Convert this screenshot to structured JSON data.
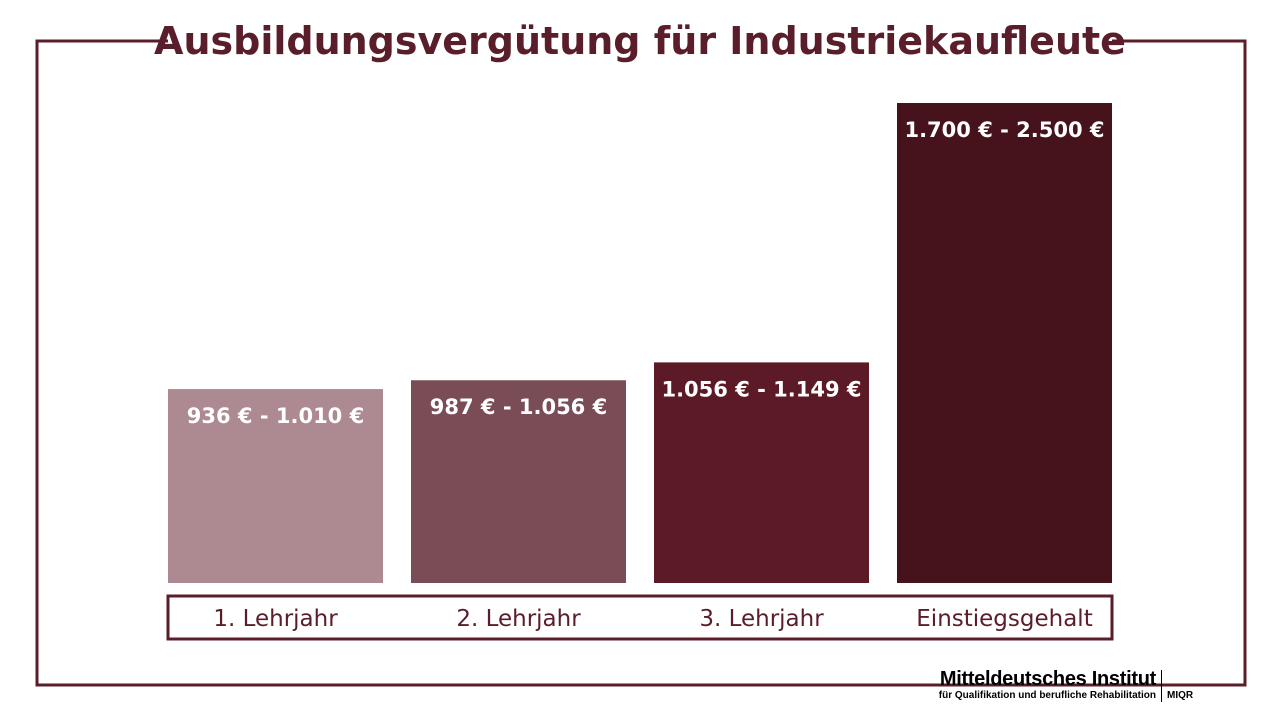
{
  "chart_data": {
    "type": "bar",
    "title": "Ausbildungsvergütung für Industriekaufleute",
    "categories": [
      "1. Lehrjahr",
      "2. Lehrjahr",
      "3. Lehrjahr",
      "Einstiegsgehalt"
    ],
    "series": [
      {
        "ranges": [
          [
            936,
            1010
          ],
          [
            987,
            1056
          ],
          [
            1056,
            1149
          ],
          [
            1700,
            2500
          ]
        ],
        "labels": [
          "936 € - 1.010 €",
          "987 € - 1.056 €",
          "1.056 € - 1.149 €",
          "1.700 € - 2.500 €"
        ]
      }
    ],
    "ylim": [
      0,
      2500
    ],
    "grid": false,
    "legend": "none"
  },
  "colors": {
    "frame": "#5a1d2a",
    "title": "#5a1d2a",
    "label_text": "#ffffff",
    "category_text": "#5a1d2a",
    "bars": [
      "#ad8a91",
      "#7a4d56",
      "#5c1a27",
      "#46131c"
    ]
  },
  "branding": {
    "name": "Mitteldeutsches Institut",
    "subtitle": "für Qualifikation und berufliche Rehabilitation",
    "abbreviation": "MIQR"
  }
}
